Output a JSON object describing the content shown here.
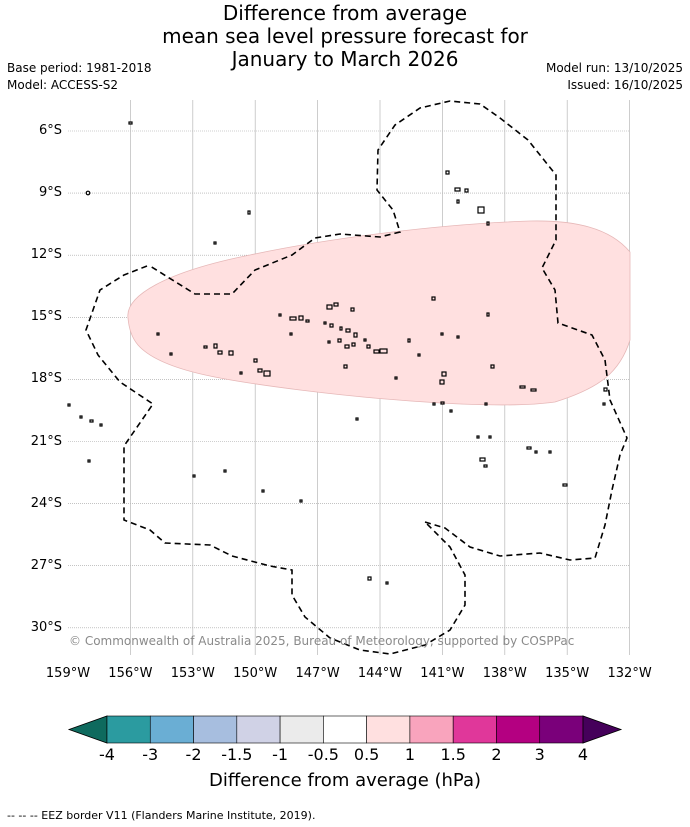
{
  "title": {
    "line1": "Difference from average",
    "line2": "mean sea level pressure forecast for",
    "line3": "January to March 2026"
  },
  "meta": {
    "base_period": "Base period: 1981-2018",
    "model": "Model: ACCESS-S2",
    "model_run": "Model run: 13/10/2025",
    "issued": "Issued: 16/10/2025"
  },
  "latitudes": [
    "6°S",
    "9°S",
    "12°S",
    "15°S",
    "18°S",
    "21°S",
    "24°S",
    "27°S",
    "30°S"
  ],
  "longitudes": [
    "159°W",
    "156°W",
    "153°W",
    "150°W",
    "147°W",
    "144°W",
    "141°W",
    "138°W",
    "135°W",
    "132°W"
  ],
  "anomaly_region": {
    "category": "0.5 to 1",
    "color": "#ffe0e0"
  },
  "copyright": "© Commonwealth of Australia 2025, Bureau of Meteorology, supported by COSPPac",
  "colorbar": {
    "colors": [
      "#0e6a5e",
      "#2b9ba0",
      "#6aaed4",
      "#a7bedf",
      "#d0d2e6",
      "#ebebeb",
      "#ffffff",
      "#ffe0e0",
      "#f9a4bd",
      "#e0379a",
      "#b40081",
      "#7a007a",
      "#45005a"
    ],
    "ticks": [
      "-4",
      "-3",
      "-2",
      "-1.5",
      "-1",
      "-0.5",
      "0.5",
      "1",
      "1.5",
      "2",
      "3",
      "4"
    ],
    "label": "Difference from average (hPa)"
  },
  "footnote": "-- -- -- EEZ border V11 (Flanders Marine Institute, 2019)."
}
